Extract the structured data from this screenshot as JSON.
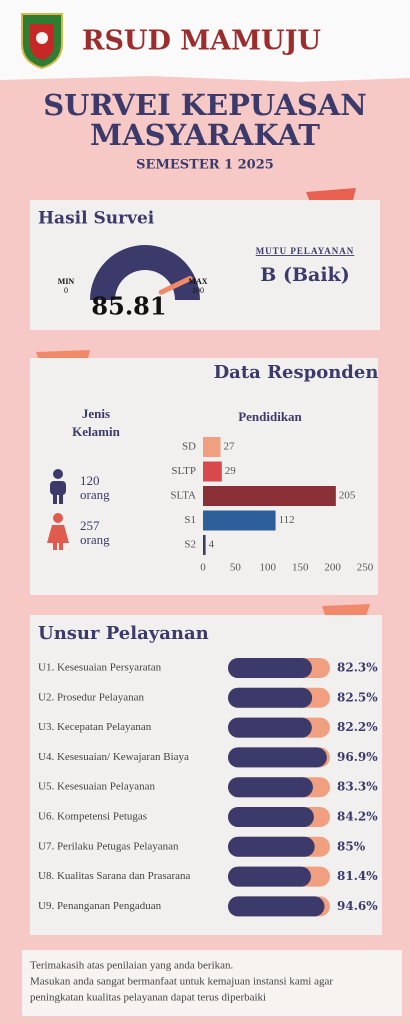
{
  "header": {
    "title": "RSUD MAMUJU",
    "survey_title": [
      "SURVEI KEPUASAN",
      "MASYARAKAT"
    ],
    "semester": "SEMESTER 1 2025"
  },
  "respondents": {
    "title": "Data Responden",
    "gender_title": [
      "Jenis",
      "Kelamin"
    ],
    "male": {
      "count": 120,
      "unit": "orang"
    },
    "female": {
      "count": 257,
      "unit": "orang"
    }
  },
  "chart_data": [
    {
      "type": "gauge",
      "title": "Hasil Survei",
      "value": 85.81,
      "ylim": [
        0,
        100
      ],
      "yticks": [
        0,
        100
      ],
      "min_label": "MIN",
      "max_label": "MAX",
      "color": "#3b3a6b",
      "needle_color": "#f0896a",
      "quality_label": "MUTU PELAYANAN",
      "quality": "B (Baik)"
    },
    {
      "type": "hbar",
      "title": "Pendidikan",
      "categories": [
        "SD",
        "SLTP",
        "SLTA",
        "S1",
        "S2"
      ],
      "values": [
        27,
        29,
        205,
        112,
        4
      ],
      "colors": [
        "#f0a080",
        "#d9484a",
        "#8b2f36",
        "#2f5f9a",
        "#3b3a6b"
      ],
      "xlim": [
        0,
        250
      ],
      "xticks": [
        0,
        50,
        100,
        150,
        200,
        250
      ]
    },
    {
      "type": "progress",
      "title": "Unsur Pelayanan",
      "categories": [
        "U1. Kesesuaian Persyaratan",
        "U2. Prosedur Pelayanan",
        "U3. Kecepatan Pelayanan",
        "U4. Kesesuaian/ Kewajaran Biaya",
        "U5. Kesesuaian Pelayanan",
        "U6. Kompetensi Petugas",
        "U7. Perilaku Petugas Pelayanan",
        "U8. Kualitas Sarana dan Prasarana",
        "U9. Penanganan Pengaduan"
      ],
      "values": [
        82.3,
        82.5,
        82.2,
        96.9,
        83.3,
        84.2,
        85,
        81.4,
        94.6
      ],
      "value_labels": [
        "82.3%",
        "82.5%",
        "82.2%",
        "96.9%",
        "83.3%",
        "84.2%",
        "85%",
        "81.4%",
        "94.6%"
      ],
      "xlim": [
        0,
        100
      ],
      "color": "#3b3a6b",
      "track_color": "#f0a080"
    }
  ],
  "footer": {
    "lines": [
      "Terimakasih atas penilaian yang anda berikan.",
      "Masukan anda sangat bermanfaat untuk kemajuan instansi kami agar",
      "peningkatan kualitas pelayanan dapat terus diperbaiki"
    ]
  }
}
